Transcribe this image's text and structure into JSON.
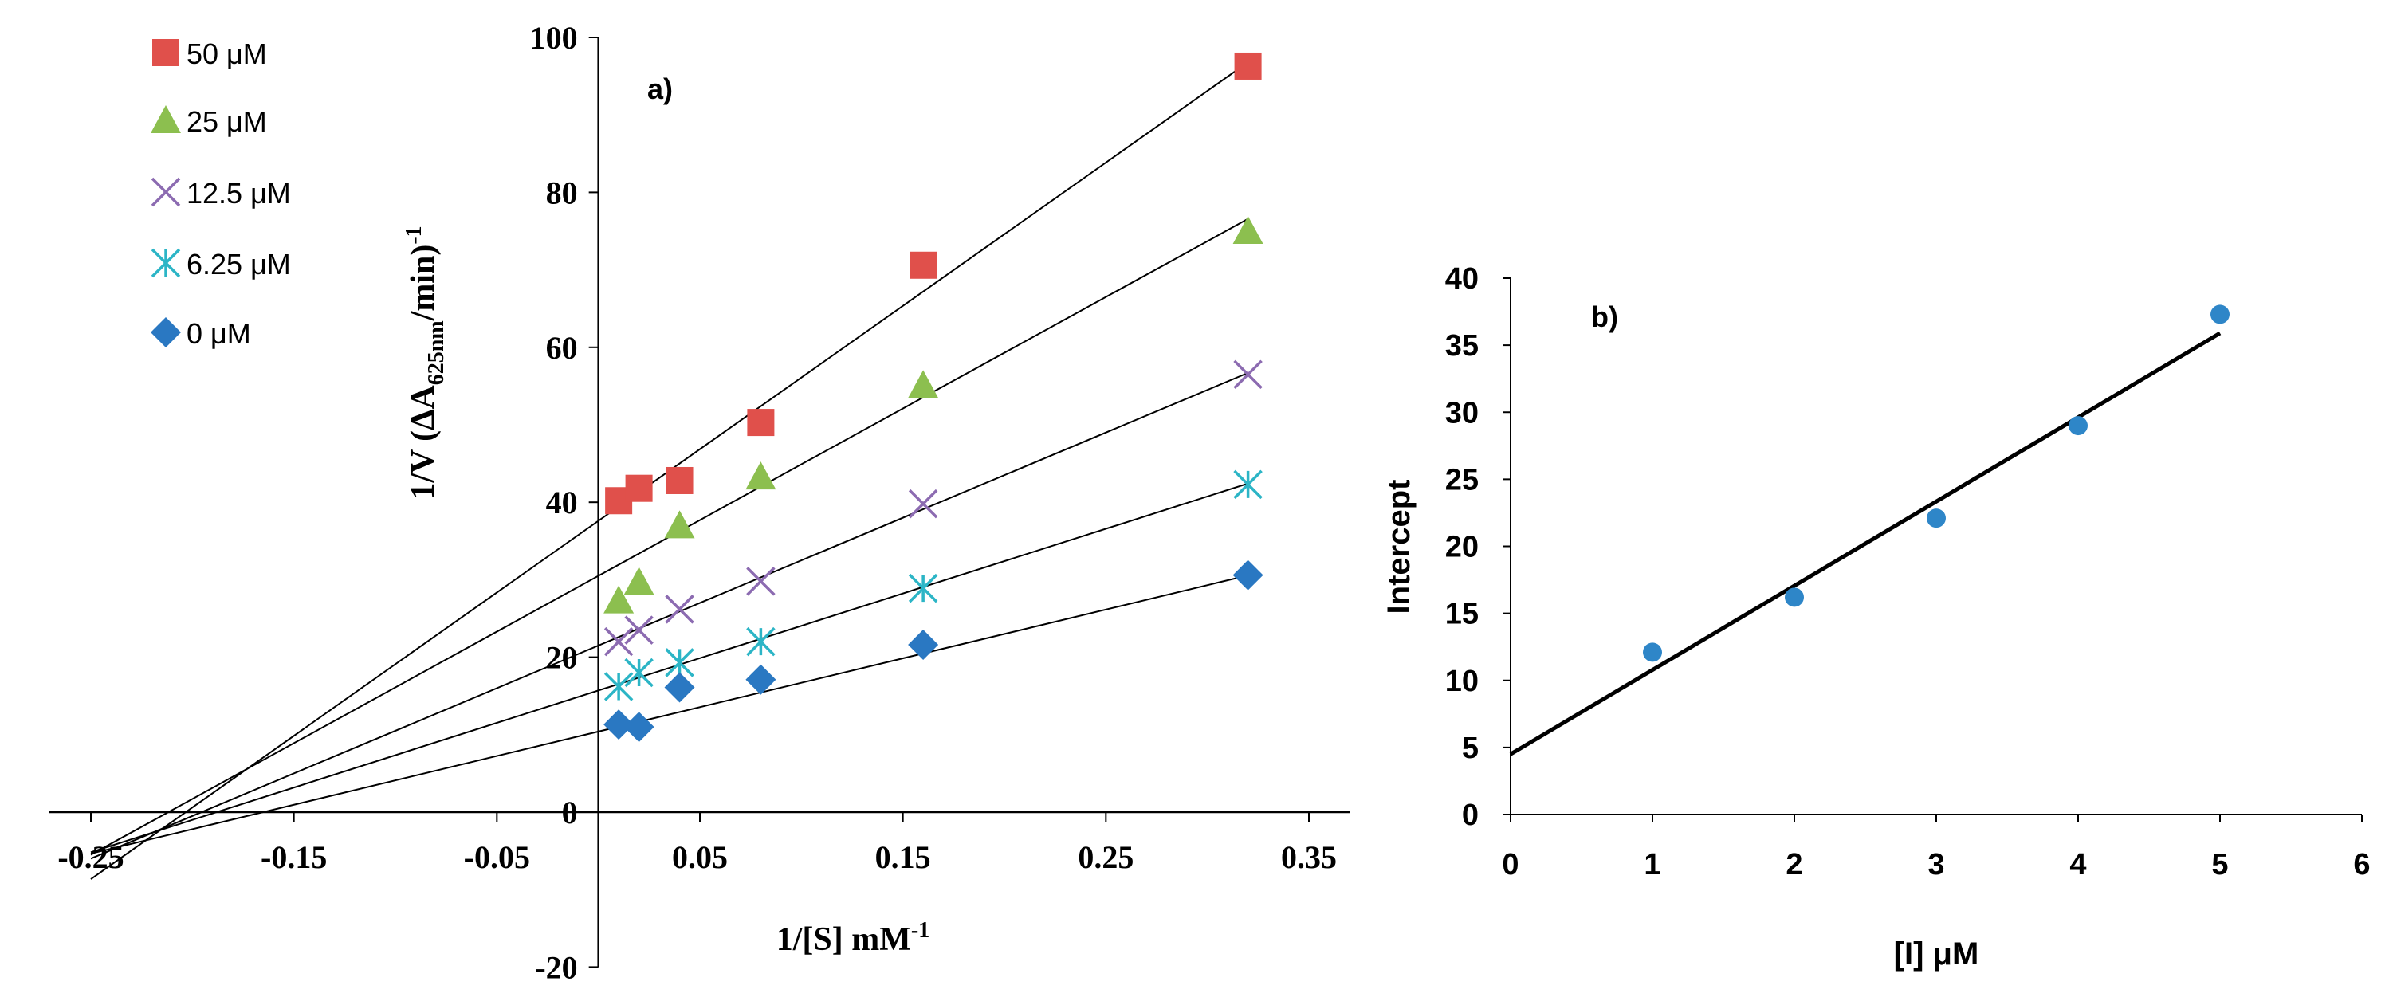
{
  "chart_data": [
    {
      "type": "scatter",
      "panel_label": "a)",
      "title": "",
      "xlabel_main": "1/[S] mM",
      "xlabel_sup": "-1",
      "ylabel_prefix": "1/V (",
      "ylabel_delta": "ΔA",
      "ylabel_sub": "625nm",
      "ylabel_suffix": "/min)",
      "ylabel_sup": "-1",
      "xlim": [
        -0.25,
        0.35
      ],
      "ylim": [
        -20,
        100
      ],
      "xticks": [
        -0.25,
        -0.15,
        -0.05,
        0.05,
        0.15,
        0.25,
        0.35
      ],
      "xtick_labels": [
        "-0.25",
        "-0.15",
        "-0.05",
        "0.05",
        "0.15",
        "0.25",
        "0.35"
      ],
      "yticks": [
        -20,
        0,
        20,
        40,
        60,
        80,
        100
      ],
      "ytick_labels": [
        "-20",
        "0",
        "20",
        "40",
        "60",
        "80",
        "100"
      ],
      "grid": false,
      "legend_position": "top-left",
      "series": [
        {
          "name": "50 μM",
          "marker": "square",
          "color": "#e0504b",
          "x": [
            0.01,
            0.02,
            0.04,
            0.08,
            0.16,
            0.32
          ],
          "y": [
            40.2,
            41.8,
            42.8,
            50.3,
            70.6,
            96.3
          ],
          "fit": {
            "slope": 185.0,
            "intercept": 37.6,
            "x_from": -0.25,
            "x_to": 0.32
          }
        },
        {
          "name": "25 μM",
          "marker": "triangle",
          "color": "#8cbf4f",
          "x": [
            0.01,
            0.02,
            0.04,
            0.08,
            0.16,
            0.32
          ],
          "y": [
            27.3,
            29.7,
            37.0,
            43.3,
            55.1,
            75.0
          ],
          "fit": {
            "slope": 144.0,
            "intercept": 30.5,
            "x_from": -0.25,
            "x_to": 0.32
          }
        },
        {
          "name": "12.5 μM",
          "marker": "cross",
          "color": "#8c6bb1",
          "x": [
            0.01,
            0.02,
            0.04,
            0.08,
            0.16,
            0.32
          ],
          "y": [
            22.0,
            23.5,
            26.2,
            29.8,
            39.8,
            56.5
          ],
          "fit": {
            "slope": 110.0,
            "intercept": 21.5,
            "x_from": -0.25,
            "x_to": 0.32
          }
        },
        {
          "name": "6.25 μM",
          "marker": "asterisk",
          "color": "#2cb5c6",
          "x": [
            0.01,
            0.02,
            0.04,
            0.08,
            0.16,
            0.32
          ],
          "y": [
            16.2,
            18.0,
            19.3,
            22.0,
            28.9,
            42.3
          ],
          "fit": {
            "slope": 83.5,
            "intercept": 15.7,
            "x_from": -0.25,
            "x_to": 0.32
          }
        },
        {
          "name": "0 μM",
          "marker": "diamond",
          "color": "#2a78c2",
          "x": [
            0.01,
            0.02,
            0.04,
            0.08,
            0.16,
            0.32
          ],
          "y": [
            11.3,
            11.0,
            16.1,
            17.1,
            21.6,
            30.6
          ],
          "fit": {
            "slope": 63.0,
            "intercept": 10.4,
            "x_from": -0.25,
            "x_to": 0.32
          }
        }
      ]
    },
    {
      "type": "scatter",
      "panel_label": "b)",
      "title": "",
      "xlabel": "[I] μM",
      "ylabel": "Intercept",
      "xlim": [
        0,
        6
      ],
      "ylim": [
        0,
        40
      ],
      "xticks": [
        0,
        1,
        2,
        3,
        4,
        5,
        6
      ],
      "xtick_labels": [
        "0",
        "1",
        "2",
        "3",
        "4",
        "5",
        "6"
      ],
      "yticks": [
        0,
        5,
        10,
        15,
        20,
        25,
        30,
        35,
        40
      ],
      "ytick_labels": [
        "0",
        "5",
        "10",
        "15",
        "20",
        "25",
        "30",
        "35",
        "40"
      ],
      "grid": false,
      "series": [
        {
          "name": "Intercept",
          "marker": "circle",
          "color": "#2e86c8",
          "x": [
            1,
            2,
            3,
            4,
            5
          ],
          "y": [
            12.1,
            16.2,
            22.1,
            29.0,
            37.3
          ],
          "fit": {
            "slope": 6.28,
            "intercept": 4.5,
            "x_from": 0,
            "x_to": 5
          }
        }
      ]
    }
  ]
}
